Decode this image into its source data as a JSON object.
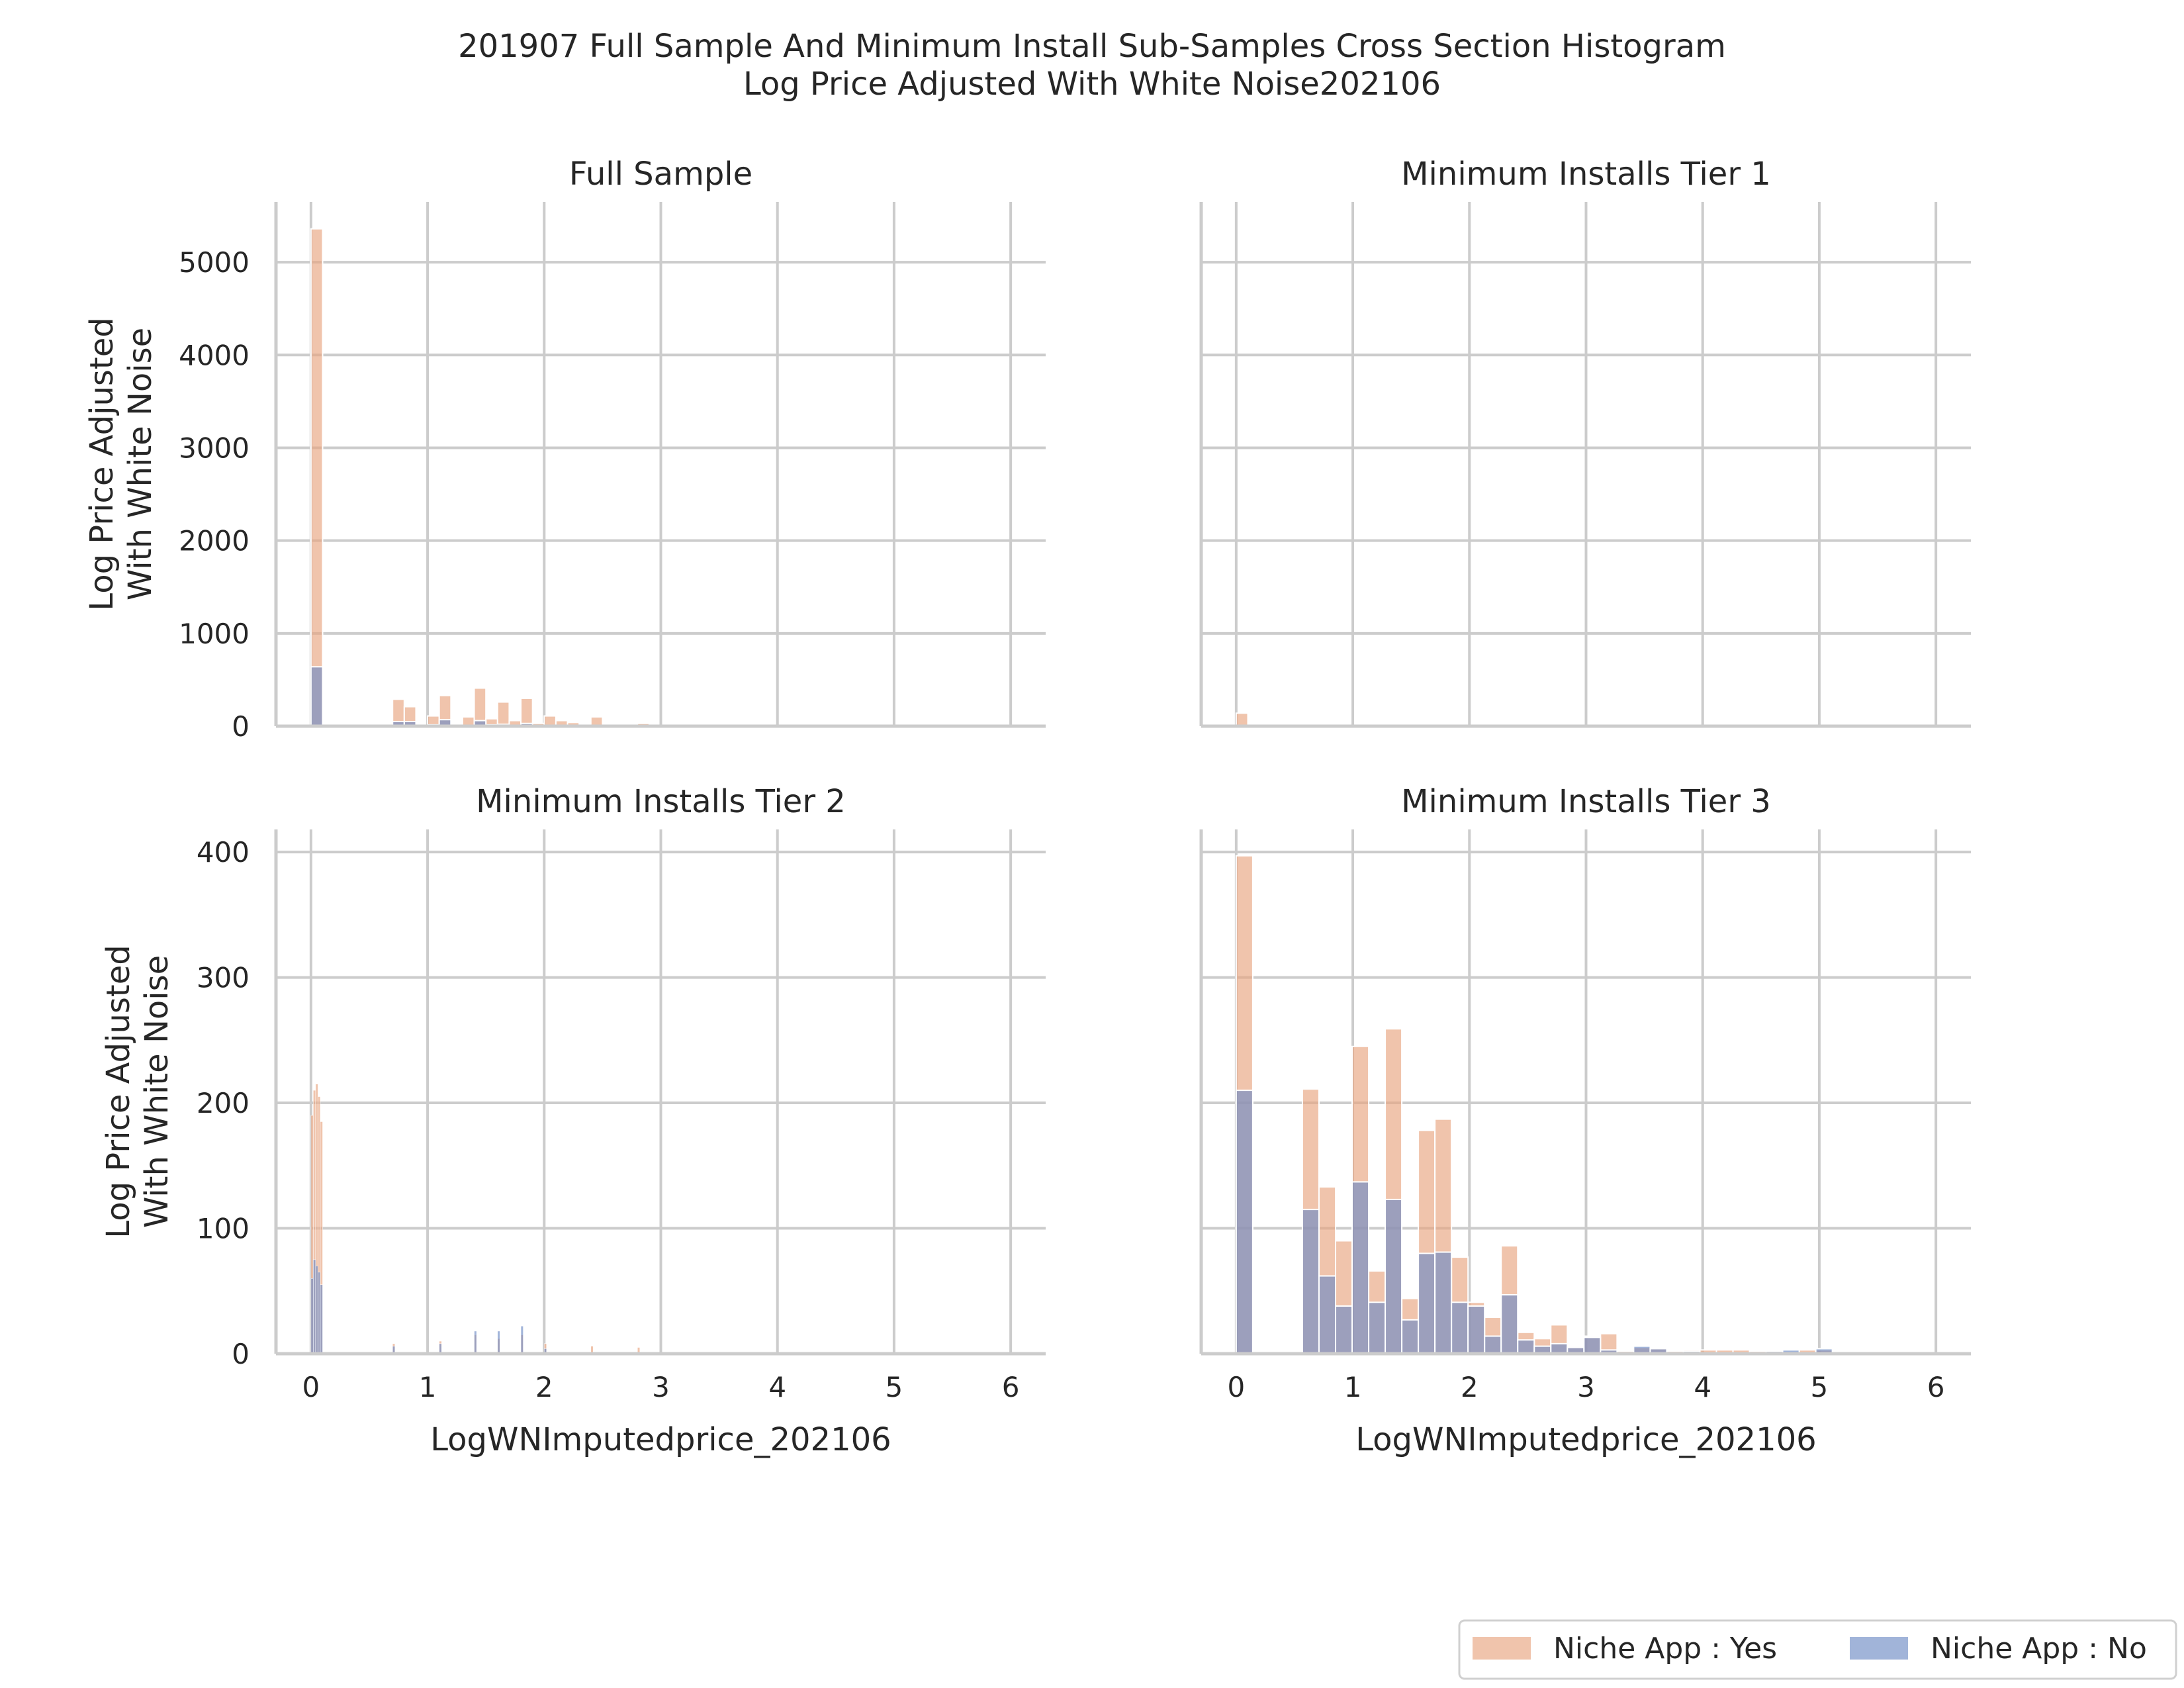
{
  "figure_title": [
    "201907 Full Sample And Minimum Install Sub-Samples Cross Section Histogram",
    "Log Price Adjusted With White Noise202106"
  ],
  "legend": [
    {
      "label": "Niche App : Yes",
      "color": "#e8a57f"
    },
    {
      "label": "Niche App : No",
      "color": "#6f8cc4"
    }
  ],
  "chart_data": [
    {
      "type": "bar",
      "title": "Full Sample",
      "xlabel": "",
      "ylabel": "Log Price Adjusted\nWith White Noise",
      "xlim": [
        -0.3,
        6.3
      ],
      "ylim": [
        0,
        5650
      ],
      "xticks": [
        0,
        1,
        2,
        3,
        4,
        5,
        6
      ],
      "xticklabels": [
        "",
        "",
        "",
        "",
        "",
        "",
        ""
      ],
      "yticks": [
        0,
        1000,
        2000,
        3000,
        4000,
        5000
      ],
      "yticklabels": [
        "0",
        "1000",
        "2000",
        "3000",
        "4000",
        "5000"
      ],
      "grid": true,
      "bin_width": 0.1,
      "series": [
        {
          "name": "Niche App : Yes",
          "color": "#e8a57f",
          "bins": [
            [
              0.0,
              5360
            ],
            [
              0.1,
              0
            ],
            [
              0.2,
              0
            ],
            [
              0.3,
              0
            ],
            [
              0.4,
              0
            ],
            [
              0.5,
              0
            ],
            [
              0.6,
              0
            ],
            [
              0.7,
              290
            ],
            [
              0.8,
              210
            ],
            [
              0.9,
              0
            ],
            [
              1.0,
              110
            ],
            [
              1.1,
              330
            ],
            [
              1.2,
              0
            ],
            [
              1.3,
              100
            ],
            [
              1.4,
              410
            ],
            [
              1.5,
              80
            ],
            [
              1.6,
              260
            ],
            [
              1.7,
              60
            ],
            [
              1.8,
              300
            ],
            [
              1.9,
              30
            ],
            [
              2.0,
              110
            ],
            [
              2.1,
              60
            ],
            [
              2.2,
              40
            ],
            [
              2.3,
              0
            ],
            [
              2.4,
              100
            ],
            [
              2.5,
              10
            ],
            [
              2.6,
              5
            ],
            [
              2.7,
              10
            ],
            [
              2.8,
              30
            ],
            [
              2.9,
              5
            ]
          ]
        },
        {
          "name": "Niche App : No",
          "color": "#6f8cc4",
          "bins": [
            [
              0.0,
              640
            ],
            [
              0.7,
              50
            ],
            [
              0.8,
              50
            ],
            [
              1.0,
              15
            ],
            [
              1.1,
              70
            ],
            [
              1.3,
              10
            ],
            [
              1.4,
              60
            ],
            [
              1.5,
              15
            ],
            [
              1.6,
              20
            ],
            [
              1.8,
              30
            ],
            [
              2.0,
              10
            ],
            [
              2.1,
              5
            ],
            [
              2.4,
              5
            ]
          ]
        }
      ]
    },
    {
      "type": "bar",
      "title": "Minimum Installs Tier 1",
      "xlabel": "",
      "ylabel": "",
      "xlim": [
        -0.3,
        6.3
      ],
      "ylim": [
        0,
        5650
      ],
      "xticks": [
        0,
        1,
        2,
        3,
        4,
        5,
        6
      ],
      "xticklabels": [
        "",
        "",
        "",
        "",
        "",
        "",
        ""
      ],
      "yticks": [
        0,
        1000,
        2000,
        3000,
        4000,
        5000
      ],
      "yticklabels": [
        "",
        "",
        "",
        "",
        "",
        ""
      ],
      "grid": true,
      "bin_width": 0.1,
      "series": [
        {
          "name": "Niche App : Yes",
          "color": "#e8a57f",
          "bins": [
            [
              0.0,
              140
            ],
            [
              0.1,
              0
            ]
          ]
        },
        {
          "name": "Niche App : No",
          "color": "#6f8cc4",
          "bins": []
        }
      ]
    },
    {
      "type": "bar",
      "title": "Minimum Installs Tier 2",
      "xlabel": "LogWNImputedprice_202106",
      "ylabel": "Log Price Adjusted\nWith White Noise",
      "xlim": [
        -0.3,
        6.3
      ],
      "ylim": [
        0,
        418
      ],
      "xticks": [
        0,
        1,
        2,
        3,
        4,
        5,
        6
      ],
      "xticklabels": [
        "0",
        "1",
        "2",
        "3",
        "4",
        "5",
        "6"
      ],
      "yticks": [
        0,
        100,
        200,
        300,
        400
      ],
      "yticklabels": [
        "0",
        "100",
        "200",
        "300",
        "400"
      ],
      "grid": true,
      "bin_width": 0.02,
      "series": [
        {
          "name": "Niche App : Yes",
          "color": "#e8a57f",
          "bins": [
            [
              0.0,
              190
            ],
            [
              0.02,
              210
            ],
            [
              0.04,
              215
            ],
            [
              0.06,
              205
            ],
            [
              0.08,
              185
            ],
            [
              0.7,
              8
            ],
            [
              1.1,
              10
            ],
            [
              1.4,
              15
            ],
            [
              1.6,
              12
            ],
            [
              1.8,
              15
            ],
            [
              2.0,
              8
            ],
            [
              2.4,
              6
            ],
            [
              2.8,
              5
            ]
          ]
        },
        {
          "name": "Niche App : No",
          "color": "#6f8cc4",
          "bins": [
            [
              0.0,
              60
            ],
            [
              0.02,
              75
            ],
            [
              0.04,
              70
            ],
            [
              0.06,
              65
            ],
            [
              0.08,
              55
            ],
            [
              0.7,
              6
            ],
            [
              1.1,
              8
            ],
            [
              1.4,
              18
            ],
            [
              1.6,
              18
            ],
            [
              1.8,
              22
            ],
            [
              2.0,
              4
            ]
          ]
        }
      ]
    },
    {
      "type": "bar",
      "title": "Minimum Installs Tier 3",
      "xlabel": "LogWNImputedprice_202106",
      "ylabel": "",
      "xlim": [
        -0.3,
        6.3
      ],
      "ylim": [
        0,
        418
      ],
      "xticks": [
        0,
        1,
        2,
        3,
        4,
        5,
        6
      ],
      "xticklabels": [
        "0",
        "1",
        "2",
        "3",
        "4",
        "5",
        "6"
      ],
      "yticks": [
        0,
        100,
        200,
        300,
        400
      ],
      "yticklabels": [
        "",
        "",
        "",
        "",
        ""
      ],
      "grid": true,
      "bin_width": 0.142,
      "series": [
        {
          "name": "Niche App : Yes",
          "color": "#e8a57f",
          "bins": [
            [
              0.0,
              397
            ],
            [
              0.142,
              0
            ],
            [
              0.284,
              0
            ],
            [
              0.426,
              0
            ],
            [
              0.568,
              211
            ],
            [
              0.71,
              133
            ],
            [
              0.852,
              90
            ],
            [
              0.994,
              245
            ],
            [
              1.136,
              66
            ],
            [
              1.278,
              259
            ],
            [
              1.42,
              44
            ],
            [
              1.562,
              178
            ],
            [
              1.704,
              187
            ],
            [
              1.846,
              77
            ],
            [
              1.988,
              41
            ],
            [
              2.13,
              29
            ],
            [
              2.272,
              86
            ],
            [
              2.414,
              17
            ],
            [
              2.556,
              12
            ],
            [
              2.698,
              23
            ],
            [
              2.84,
              6
            ],
            [
              2.982,
              14
            ],
            [
              3.124,
              16
            ],
            [
              3.266,
              2
            ],
            [
              3.408,
              5
            ],
            [
              3.55,
              5
            ],
            [
              3.692,
              2
            ],
            [
              3.834,
              3
            ],
            [
              3.976,
              3
            ],
            [
              4.118,
              3
            ],
            [
              4.26,
              3
            ],
            [
              4.402,
              2
            ],
            [
              4.544,
              2
            ],
            [
              4.686,
              2
            ],
            [
              4.828,
              3
            ],
            [
              4.97,
              3
            ]
          ]
        },
        {
          "name": "Niche App : No",
          "color": "#6f8cc4",
          "bins": [
            [
              0.0,
              210
            ],
            [
              0.568,
              115
            ],
            [
              0.71,
              62
            ],
            [
              0.852,
              38
            ],
            [
              0.994,
              137
            ],
            [
              1.136,
              41
            ],
            [
              1.278,
              123
            ],
            [
              1.42,
              27
            ],
            [
              1.562,
              80
            ],
            [
              1.704,
              81
            ],
            [
              1.846,
              41
            ],
            [
              1.988,
              38
            ],
            [
              2.13,
              14
            ],
            [
              2.272,
              47
            ],
            [
              2.414,
              11
            ],
            [
              2.556,
              6
            ],
            [
              2.698,
              8
            ],
            [
              2.84,
              5
            ],
            [
              2.982,
              13
            ],
            [
              3.124,
              3
            ],
            [
              3.408,
              6
            ],
            [
              3.55,
              4
            ],
            [
              3.834,
              2
            ],
            [
              4.544,
              2
            ],
            [
              4.686,
              3
            ],
            [
              4.97,
              4
            ]
          ]
        }
      ]
    }
  ]
}
